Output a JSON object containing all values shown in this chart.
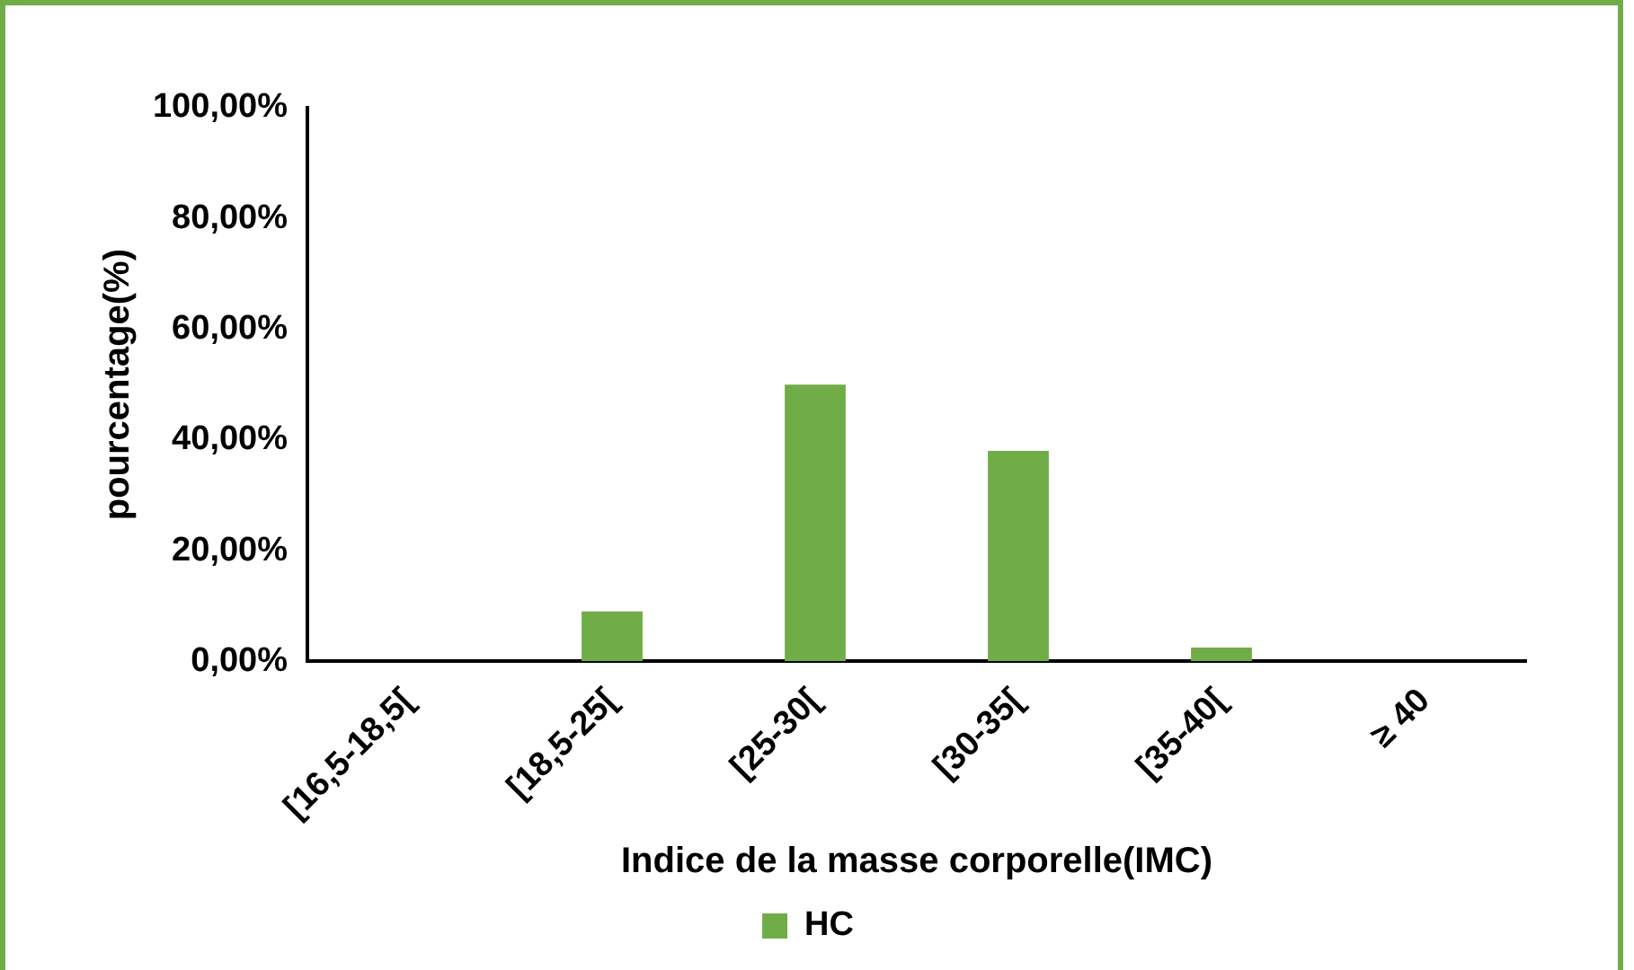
{
  "chart_data": {
    "type": "bar",
    "xlabel": "Indice de la masse corporelle(IMC)",
    "ylabel": "pourcentage(%)",
    "categories": [
      "[16,5-18,5[",
      "[18,5-25[",
      "[25-30[",
      "[30-35[",
      "[35-40[",
      "≥ 40"
    ],
    "series": [
      {
        "name": "HC",
        "color": "#70ad47",
        "values": [
          0,
          9,
          50,
          38,
          2.5,
          0
        ]
      }
    ],
    "ylim": [
      0,
      100
    ],
    "yticks": [
      {
        "value": 0,
        "label": "0,00%"
      },
      {
        "value": 20,
        "label": "20,00%"
      },
      {
        "value": 40,
        "label": "40,00%"
      },
      {
        "value": 60,
        "label": "60,00%"
      },
      {
        "value": 80,
        "label": "80,00%"
      },
      {
        "value": 100,
        "label": "100,00%"
      }
    ],
    "grid": false,
    "legend": "bottom"
  }
}
